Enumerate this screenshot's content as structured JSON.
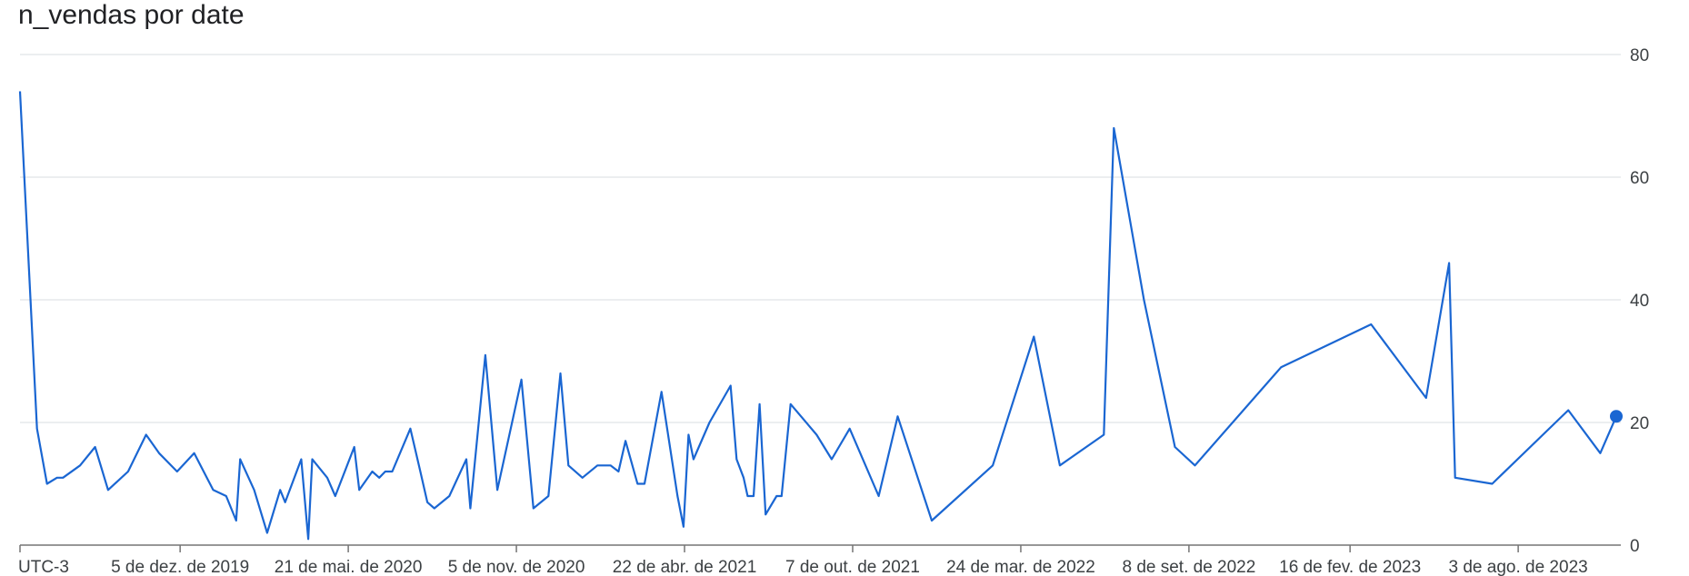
{
  "chart_data": {
    "type": "line",
    "title": "n_vendas por date",
    "timezone_label": "UTC-3",
    "ylim": [
      0,
      80
    ],
    "y_ticks": [
      0,
      20,
      40,
      60,
      80
    ],
    "grid": true,
    "x_tick_labels": [
      {
        "date": "2019-12-05",
        "label": "5 de dez. de 2019"
      },
      {
        "date": "2020-05-21",
        "label": "21 de mai. de 2020"
      },
      {
        "date": "2020-11-05",
        "label": "5 de nov. de 2020"
      },
      {
        "date": "2021-04-22",
        "label": "22 de abr. de 2021"
      },
      {
        "date": "2021-10-07",
        "label": "7 de out. de 2021"
      },
      {
        "date": "2022-03-24",
        "label": "24 de mar. de 2022"
      },
      {
        "date": "2022-09-08",
        "label": "8 de set. de 2022"
      },
      {
        "date": "2023-02-16",
        "label": "16 de fev. de 2023"
      },
      {
        "date": "2023-08-03",
        "label": "3 de ago. de 2023"
      }
    ],
    "series": [
      {
        "color": "#1a66d2",
        "points": [
          [
            "2019-06-28",
            74
          ],
          [
            "2019-07-15",
            19
          ],
          [
            "2019-07-25",
            10
          ],
          [
            "2019-08-04",
            11
          ],
          [
            "2019-08-10",
            11
          ],
          [
            "2019-08-27",
            13
          ],
          [
            "2019-09-11",
            16
          ],
          [
            "2019-09-24",
            9
          ],
          [
            "2019-10-14",
            12
          ],
          [
            "2019-11-01",
            18
          ],
          [
            "2019-11-14",
            15
          ],
          [
            "2019-12-02",
            12
          ],
          [
            "2019-12-19",
            15
          ],
          [
            "2020-01-07",
            9
          ],
          [
            "2020-01-20",
            8
          ],
          [
            "2020-01-30",
            4
          ],
          [
            "2020-02-03",
            14
          ],
          [
            "2020-02-17",
            9
          ],
          [
            "2020-03-01",
            2
          ],
          [
            "2020-03-14",
            9
          ],
          [
            "2020-03-19",
            7
          ],
          [
            "2020-04-04",
            14
          ],
          [
            "2020-04-11",
            1
          ],
          [
            "2020-04-15",
            14
          ],
          [
            "2020-04-30",
            11
          ],
          [
            "2020-05-08",
            8
          ],
          [
            "2020-05-27",
            16
          ],
          [
            "2020-06-01",
            9
          ],
          [
            "2020-06-14",
            12
          ],
          [
            "2020-06-21",
            11
          ],
          [
            "2020-06-27",
            12
          ],
          [
            "2020-07-04",
            12
          ],
          [
            "2020-07-22",
            19
          ],
          [
            "2020-08-01",
            12
          ],
          [
            "2020-08-08",
            7
          ],
          [
            "2020-08-15",
            6
          ],
          [
            "2020-08-30",
            8
          ],
          [
            "2020-09-16",
            14
          ],
          [
            "2020-09-20",
            6
          ],
          [
            "2020-10-05",
            31
          ],
          [
            "2020-10-17",
            9
          ],
          [
            "2020-11-10",
            27
          ],
          [
            "2020-11-22",
            6
          ],
          [
            "2020-12-07",
            8
          ],
          [
            "2020-12-19",
            28
          ],
          [
            "2020-12-27",
            13
          ],
          [
            "2021-01-10",
            11
          ],
          [
            "2021-01-25",
            13
          ],
          [
            "2021-02-07",
            13
          ],
          [
            "2021-02-15",
            12
          ],
          [
            "2021-02-22",
            17
          ],
          [
            "2021-03-06",
            10
          ],
          [
            "2021-03-13",
            10
          ],
          [
            "2021-03-30",
            25
          ],
          [
            "2021-04-15",
            8
          ],
          [
            "2021-04-21",
            3
          ],
          [
            "2021-04-26",
            18
          ],
          [
            "2021-05-01",
            14
          ],
          [
            "2021-05-17",
            20
          ],
          [
            "2021-06-07",
            26
          ],
          [
            "2021-06-13",
            14
          ],
          [
            "2021-06-20",
            11
          ],
          [
            "2021-06-24",
            8
          ],
          [
            "2021-06-30",
            8
          ],
          [
            "2021-07-06",
            23
          ],
          [
            "2021-07-12",
            5
          ],
          [
            "2021-07-23",
            8
          ],
          [
            "2021-07-28",
            8
          ],
          [
            "2021-08-06",
            23
          ],
          [
            "2021-09-01",
            18
          ],
          [
            "2021-09-16",
            14
          ],
          [
            "2021-10-04",
            19
          ],
          [
            "2021-11-02",
            8
          ],
          [
            "2021-11-21",
            21
          ],
          [
            "2021-12-25",
            4
          ],
          [
            "2022-02-24",
            13
          ],
          [
            "2022-04-06",
            34
          ],
          [
            "2022-05-02",
            13
          ],
          [
            "2022-06-15",
            18
          ],
          [
            "2022-06-25",
            68
          ],
          [
            "2022-07-25",
            40
          ],
          [
            "2022-08-25",
            16
          ],
          [
            "2022-09-14",
            13
          ],
          [
            "2022-12-09",
            29
          ],
          [
            "2023-03-09",
            36
          ],
          [
            "2023-05-03",
            24
          ],
          [
            "2023-05-26",
            46
          ],
          [
            "2023-06-01",
            11
          ],
          [
            "2023-07-08",
            10
          ],
          [
            "2023-09-22",
            22
          ],
          [
            "2023-10-24",
            15
          ],
          [
            "2023-11-09",
            21
          ]
        ]
      }
    ]
  }
}
